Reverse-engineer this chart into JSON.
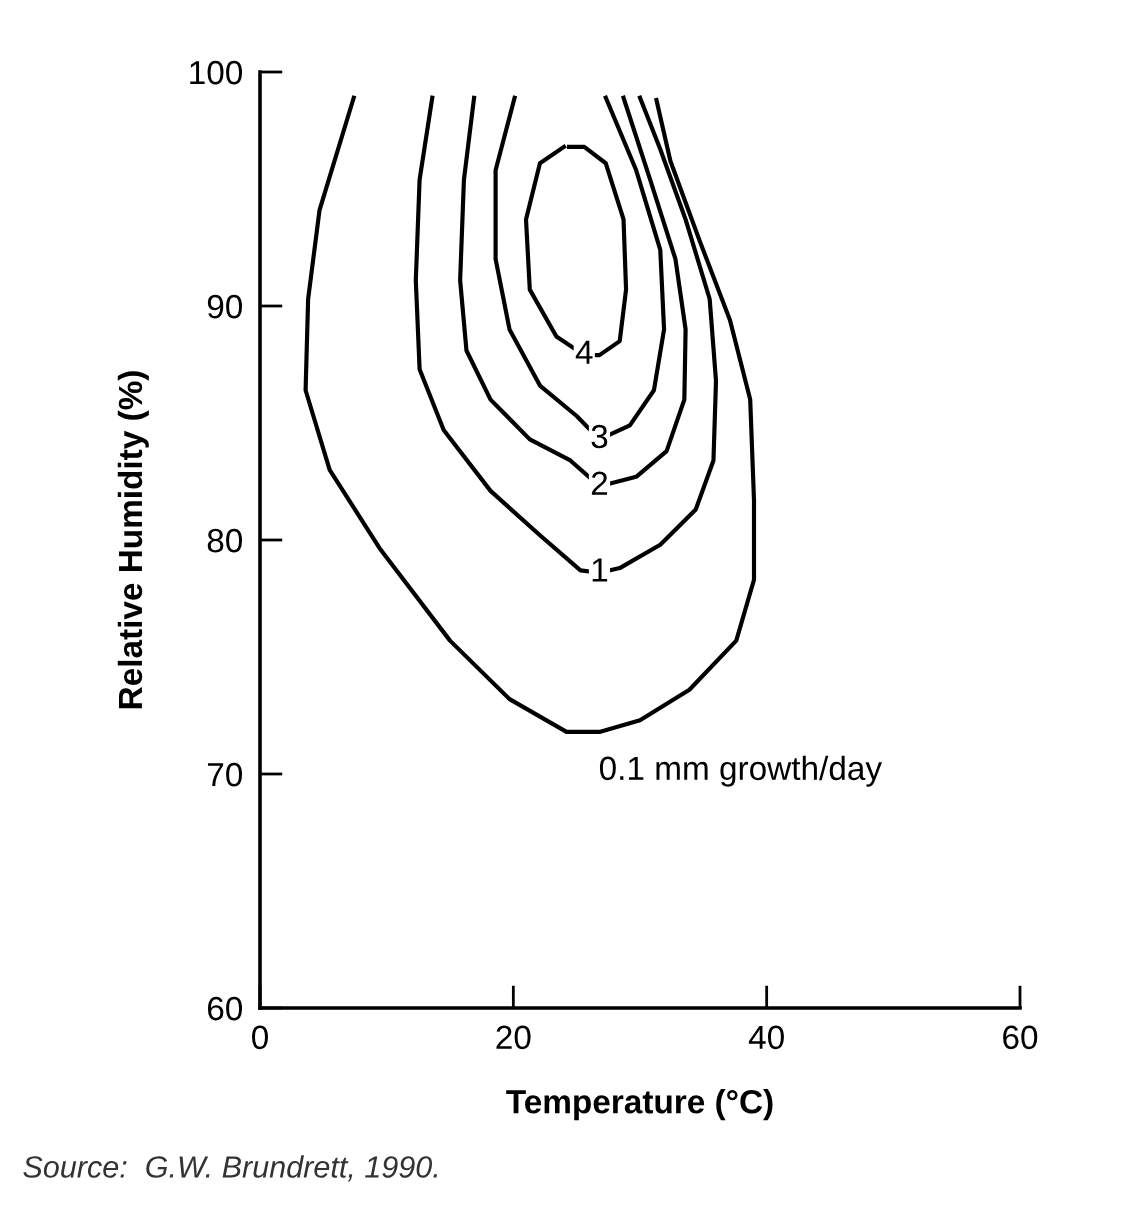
{
  "chart_data": {
    "type": "line",
    "xlabel": "Temperature (°C)",
    "ylabel": "Relative Humidity (%)",
    "xlim": [
      0,
      60
    ],
    "xticks": [
      0,
      20,
      40,
      60
    ],
    "ylim": [
      60,
      100
    ],
    "yticks": [
      60,
      70,
      80,
      90,
      100
    ],
    "grid": false,
    "legend": false,
    "line_style": "solid",
    "marker": "none",
    "series": [
      {
        "color": "#000000",
        "x": [
          7.4,
          4.7,
          3.8,
          3.6,
          5.5,
          9.5,
          15,
          19.7,
          24.2,
          26.8,
          30,
          33.9,
          37.6,
          39,
          39,
          38.7,
          37.1,
          34.7,
          32.4,
          31.3
        ],
        "values": [
          98.9,
          94.1,
          90.3,
          86.4,
          83,
          79.6,
          75.7,
          73.2,
          71.8,
          71.8,
          72.3,
          73.6,
          75.7,
          78.3,
          81.7,
          86,
          89.4,
          92.8,
          96.2,
          98.8
        ]
      },
      {
        "name": "1",
        "color": "#000000",
        "x": [
          13.6,
          12.6,
          12.3,
          12.6,
          14.5,
          18.2,
          22.1,
          25.3,
          26.8,
          28.4,
          31.6,
          34.4,
          35.8,
          36,
          35.5,
          33.6,
          31.6,
          30
        ],
        "values": [
          98.9,
          95.4,
          91.1,
          87.3,
          84.7,
          82.1,
          80.2,
          78.7,
          78.6,
          78.8,
          79.8,
          81.3,
          83.4,
          86.8,
          90.3,
          93.7,
          96.7,
          98.9
        ]
      },
      {
        "name": "2",
        "color": "#000000",
        "x": [
          16.9,
          16.1,
          15.8,
          16.3,
          18.2,
          21.3,
          24.5,
          26.8,
          29.7,
          32.1,
          33.5,
          33.6,
          32.8,
          30.8,
          28.7
        ],
        "values": [
          98.9,
          95.4,
          91.1,
          88.1,
          86,
          84.3,
          83.4,
          82.3,
          82.7,
          83.8,
          86,
          89,
          92,
          95.4,
          98.9
        ]
      },
      {
        "name": "3",
        "color": "#000000",
        "x": [
          20.1,
          18.6,
          18.6,
          19.7,
          22.1,
          25,
          26.8,
          29.2,
          31.1,
          31.9,
          31.6,
          29.7,
          27.3
        ],
        "values": [
          98.9,
          95.8,
          92,
          89,
          86.6,
          85.3,
          84.3,
          84.9,
          86.4,
          89,
          92.4,
          95.8,
          98.9
        ]
      },
      {
        "name": "4",
        "color": "#000000",
        "x": [
          24,
          22.1,
          21,
          21.3,
          23.4,
          25.6,
          26.8,
          28.4,
          28.9,
          28.7,
          27.3,
          25.6,
          24.4
        ],
        "values": [
          96.8,
          96.1,
          93.7,
          90.7,
          88.7,
          87.9,
          87.9,
          88.5,
          90.7,
          93.7,
          96.1,
          96.8,
          96.8
        ]
      }
    ],
    "annotations": [
      "0.1 mm growth/day",
      "Source:  G.W. Brundrett, 1990."
    ]
  }
}
